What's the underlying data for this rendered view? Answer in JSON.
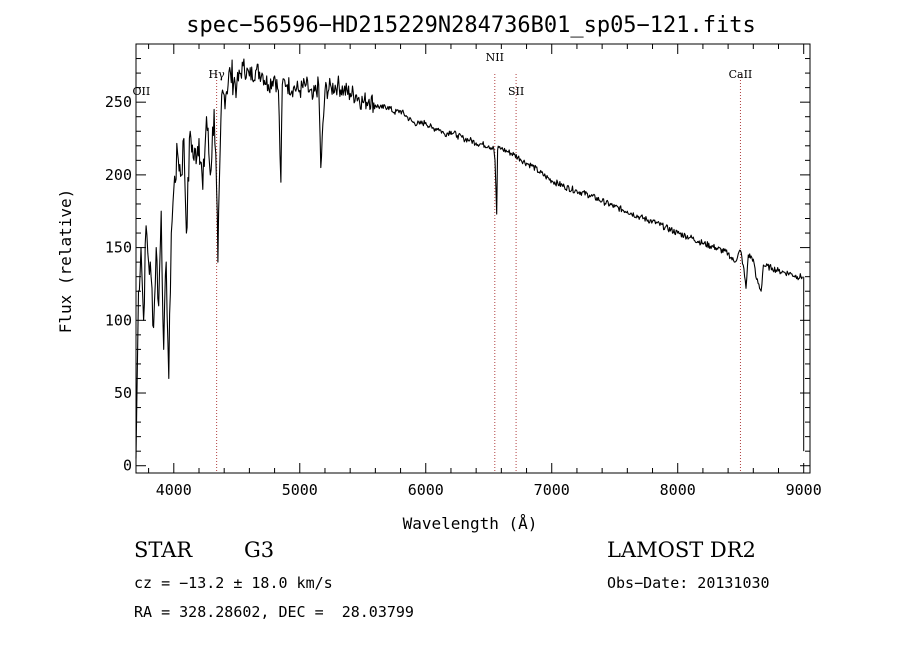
{
  "chart_data": {
    "type": "line",
    "title": "spec−56596−HD215229N284736B01_sp05−121.fits",
    "xlabel": "Wavelength (Å)",
    "ylabel": "Flux (relative)",
    "xlim": [
      3700,
      9050
    ],
    "ylim": [
      -5,
      290
    ],
    "x_ticks": [
      4000,
      5000,
      6000,
      7000,
      8000,
      9000
    ],
    "y_ticks": [
      0,
      50,
      100,
      150,
      200,
      250
    ],
    "grid": false,
    "series": [
      {
        "x": [
          3700,
          3720,
          3740,
          3760,
          3780,
          3800,
          3820,
          3840,
          3860,
          3880,
          3900,
          3920,
          3940,
          3960,
          3980,
          4000,
          4030,
          4060,
          4080,
          4100,
          4130,
          4160,
          4200,
          4230,
          4260,
          4290,
          4320,
          4340,
          4350,
          4380,
          4400,
          4450,
          4500,
          4550,
          4600,
          4650,
          4700,
          4750,
          4800,
          4830,
          4850,
          4861,
          4880,
          4900,
          4950,
          5000,
          5050,
          5100,
          5150,
          5167,
          5200,
          5250,
          5300,
          5350,
          5400,
          5450,
          5500,
          5550,
          5600,
          5650,
          5700,
          5750,
          5800,
          5850,
          5900,
          5950,
          6000,
          6050,
          6100,
          6150,
          6200,
          6250,
          6300,
          6350,
          6400,
          6450,
          6500,
          6540,
          6550,
          6563,
          6570,
          6580,
          6600,
          6650,
          6700,
          6750,
          6800,
          6850,
          6900,
          6950,
          7000,
          7100,
          7200,
          7300,
          7400,
          7500,
          7600,
          7700,
          7800,
          7900,
          8000,
          8100,
          8200,
          8300,
          8400,
          8450,
          8498,
          8520,
          8542,
          8560,
          8600,
          8620,
          8662,
          8680,
          8700,
          8750,
          8800,
          8850,
          8900,
          8950,
          8990
        ],
        "y": [
          5,
          120,
          150,
          100,
          165,
          140,
          130,
          95,
          150,
          110,
          175,
          80,
          140,
          60,
          160,
          190,
          215,
          200,
          225,
          160,
          230,
          210,
          225,
          190,
          240,
          200,
          245,
          190,
          140,
          255,
          255,
          270,
          262,
          275,
          268,
          272,
          270,
          262,
          268,
          258,
          195,
          262,
          265,
          262,
          260,
          258,
          262,
          252,
          262,
          205,
          258,
          260,
          262,
          258,
          256,
          255,
          250,
          252,
          248,
          246,
          247,
          243,
          244,
          240,
          236,
          235,
          236,
          232,
          232,
          228,
          230,
          227,
          225,
          224,
          222,
          221,
          220,
          218,
          210,
          173,
          217,
          219,
          218,
          216,
          214,
          211,
          208,
          206,
          202,
          199,
          196,
          192,
          189,
          186,
          182,
          178,
          175,
          171,
          168,
          164,
          160,
          157,
          153,
          150,
          146,
          140,
          148,
          138,
          122,
          145,
          142,
          130,
          120,
          138,
          137,
          136,
          134,
          133,
          132,
          130,
          130
        ],
        "color": "#000000"
      }
    ],
    "annotations": [
      {
        "label": "OII",
        "x": 3727,
        "marker_line": false
      },
      {
        "label": "Hγ",
        "x": 4340,
        "marker_line": true
      },
      {
        "label": "NII",
        "x": 6548,
        "marker_line": true
      },
      {
        "label": "SII",
        "x": 6717,
        "marker_line": true
      },
      {
        "label": "CaII",
        "x": 8498,
        "marker_line": true
      }
    ],
    "line_marker_color": "#b04040"
  },
  "info": {
    "class_label": "STAR",
    "subclass_label": "G3",
    "survey": "LAMOST DR2",
    "redshift": "cz = −13.2 ± 18.0 km/s",
    "obs_date": "Obs−Date: 20131030",
    "coords": "RA = 328.28602, DEC =  28.03799"
  }
}
